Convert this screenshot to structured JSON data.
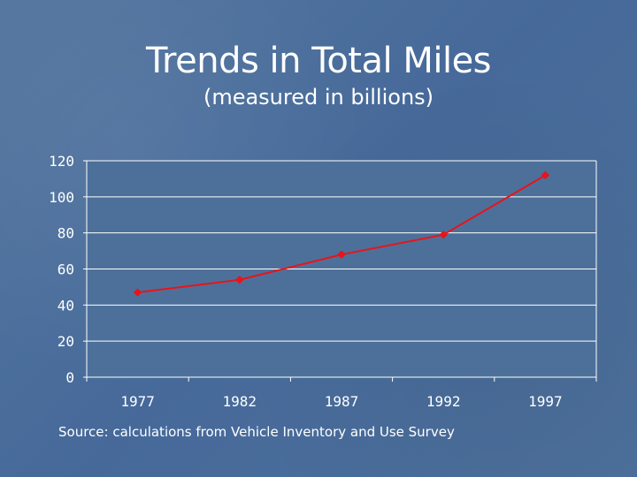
{
  "slide": {
    "title": "Trends in Total Miles",
    "subtitle": "(measured in billions)",
    "source": "Source: calculations from Vehicle Inventory and Use Survey"
  },
  "colors": {
    "background": "#4a6e9a",
    "plot_area": "#4d709a",
    "line": "#e8141a",
    "gridline": "#ffffff",
    "text": "#ffffff"
  },
  "chart_data": {
    "type": "line",
    "title": "Trends in Total Miles",
    "subtitle": "(measured in billions)",
    "xlabel": "",
    "ylabel": "",
    "categories": [
      "1977",
      "1982",
      "1987",
      "1992",
      "1997"
    ],
    "series": [
      {
        "name": "Total Miles",
        "values": [
          47,
          54,
          68,
          79,
          112
        ]
      }
    ],
    "ylim": [
      0,
      120
    ],
    "yticks": [
      "0",
      "20",
      "40",
      "60",
      "80",
      "100",
      "120"
    ],
    "grid": true,
    "legend": "none",
    "marker": "diamond"
  }
}
